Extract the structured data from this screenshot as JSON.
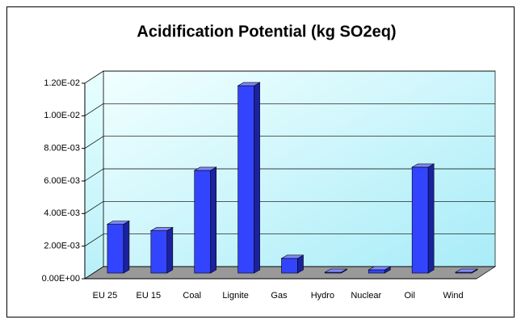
{
  "chart_data": {
    "type": "bar3d",
    "title": "Acidification Potential (kg SO2eq)",
    "categories": [
      "EU 25",
      "EU 15",
      "Coal",
      "Lignite",
      "Gas",
      "Hydro",
      "Nuclear",
      "Oil",
      "Wind"
    ],
    "values": [
      0.003,
      0.0026,
      0.0063,
      0.0115,
      0.0009,
      5e-05,
      0.0002,
      0.0065,
      5e-05
    ],
    "color": "#3344ff",
    "ylim": [
      0,
      0.012
    ],
    "yticks": [
      {
        "value": 0,
        "label": "0.00E+00"
      },
      {
        "value": 0.002,
        "label": "2.00E-03"
      },
      {
        "value": 0.004,
        "label": "4.00E-03"
      },
      {
        "value": 0.006,
        "label": "6.00E-03"
      },
      {
        "value": 0.008,
        "label": "8.00E-03"
      },
      {
        "value": 0.01,
        "label": "1.00E-02"
      },
      {
        "value": 0.012,
        "label": "1.20E-02"
      }
    ],
    "grid": true
  }
}
